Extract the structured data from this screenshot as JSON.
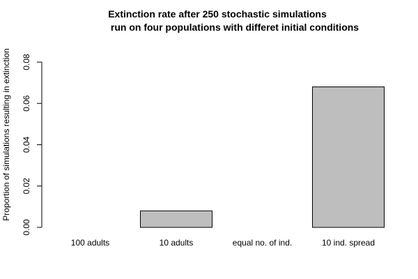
{
  "chart_data": {
    "type": "bar",
    "title_lines": [
      "Extinction rate after 250 stochastic simulations",
      "run on four populations with differet initial conditions"
    ],
    "xlabel": "",
    "ylabel": "Proportion of simulations resulting in extinction",
    "categories": [
      "100 adults",
      "10 adults",
      "equal no. of ind.",
      "10 ind. spread"
    ],
    "values": [
      0.0,
      0.008,
      0.0,
      0.068
    ],
    "ylim": [
      0,
      0.08
    ],
    "yticks": [
      0.0,
      0.02,
      0.04,
      0.06,
      0.08
    ],
    "ytick_labels": [
      "0.00",
      "0.02",
      "0.04",
      "0.06",
      "0.08"
    ],
    "grid": false,
    "legend": "none",
    "colors": {
      "bar_fill": "#bebebe",
      "bar_stroke": "#000000",
      "axis": "#000000",
      "text": "#000000",
      "background": "#ffffff"
    }
  }
}
